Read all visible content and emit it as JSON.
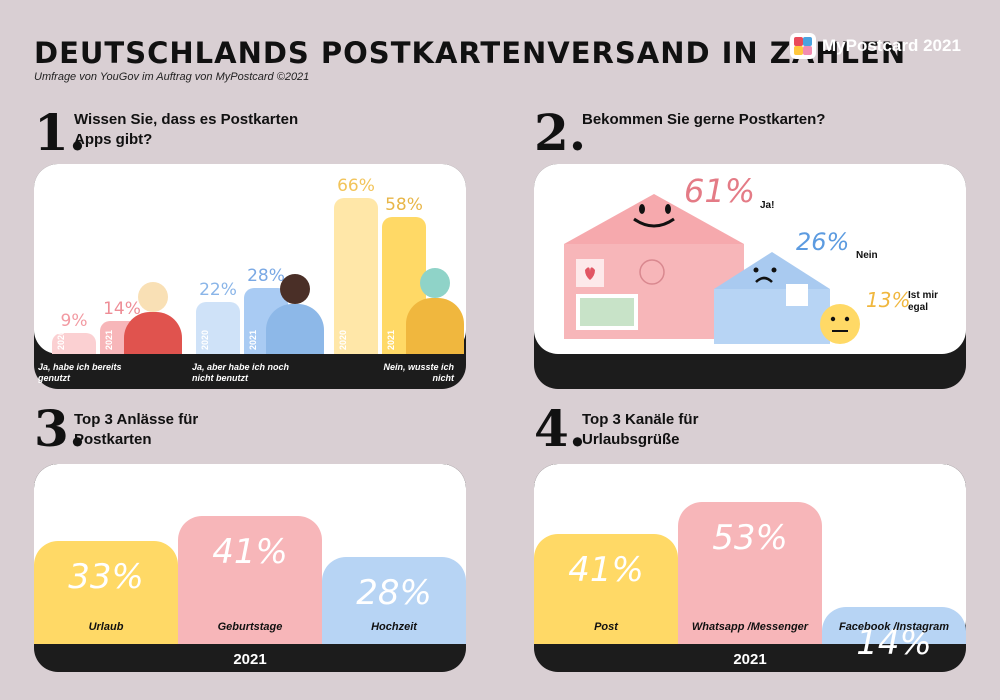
{
  "header": {
    "title": "DEUTSCHLANDS POSTKARTENVERSAND IN ZAHLEN",
    "subtitle": "Umfrage von YouGov im Auftrag von MyPostcard ©2021",
    "brand": "MyPostcard 2021"
  },
  "colors": {
    "pink": "#f7b6b9",
    "blue": "#b7d4f4",
    "yellow": "#ffd966",
    "dark": "#1c1c1c",
    "background": "#d9cfd3"
  },
  "chart_data": [
    {
      "type": "bar",
      "number": "1.",
      "title": "Wissen Sie, dass es Postkarten Apps gibt?",
      "categories": [
        "Ja, habe ich bereits genutzt",
        "Ja, aber habe ich noch nicht benutzt",
        "Nein, wusste ich nicht"
      ],
      "series": [
        {
          "name": "2020",
          "values": [
            9,
            22,
            66
          ],
          "labels": [
            "9%",
            "22%",
            "66%"
          ]
        },
        {
          "name": "2021",
          "values": [
            14,
            28,
            58
          ],
          "labels": [
            "14%",
            "28%",
            "58%"
          ]
        }
      ]
    },
    {
      "type": "pie",
      "number": "2.",
      "title": "Bekommen Sie gerne Postkarten?",
      "categories": [
        "Ja!",
        "Nein",
        "Ist mir egal"
      ],
      "values": [
        61,
        26,
        13
      ],
      "labels": [
        "61%",
        "26%",
        "13%"
      ]
    },
    {
      "type": "bar",
      "number": "3.",
      "title": "Top 3 Anlässe für Postkarten",
      "categories": [
        "Urlaub",
        "Geburtstage",
        "Hochzeit"
      ],
      "values": [
        33,
        41,
        28
      ],
      "labels": [
        "33%",
        "41%",
        "28%"
      ],
      "year": "2021"
    },
    {
      "type": "bar",
      "number": "4.",
      "title": "Top 3 Kanäle für Urlaubsgrüße",
      "categories": [
        "Post",
        "Whatsapp /Messenger",
        "Facebook /Instagram"
      ],
      "values": [
        41,
        53,
        14
      ],
      "labels": [
        "41%",
        "53%",
        "14%"
      ],
      "year": "2021"
    }
  ]
}
